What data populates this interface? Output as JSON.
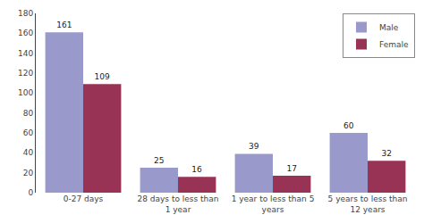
{
  "chart_data": {
    "type": "bar",
    "categories": [
      "0-27 days",
      "28 days to less than\n1 year",
      "1 year to less than 5\nyears",
      "5 years to less than\n12 years"
    ],
    "series": [
      {
        "name": "Male",
        "color": "#9999cc",
        "values": [
          161,
          25,
          39,
          60
        ]
      },
      {
        "name": "Female",
        "color": "#993355",
        "values": [
          109,
          16,
          17,
          32
        ]
      }
    ],
    "ylim": [
      0,
      180
    ],
    "yticks": [
      0,
      20,
      40,
      60,
      80,
      100,
      120,
      140,
      160,
      180
    ],
    "grid": false,
    "legend": "upper right",
    "data_labels": true
  }
}
